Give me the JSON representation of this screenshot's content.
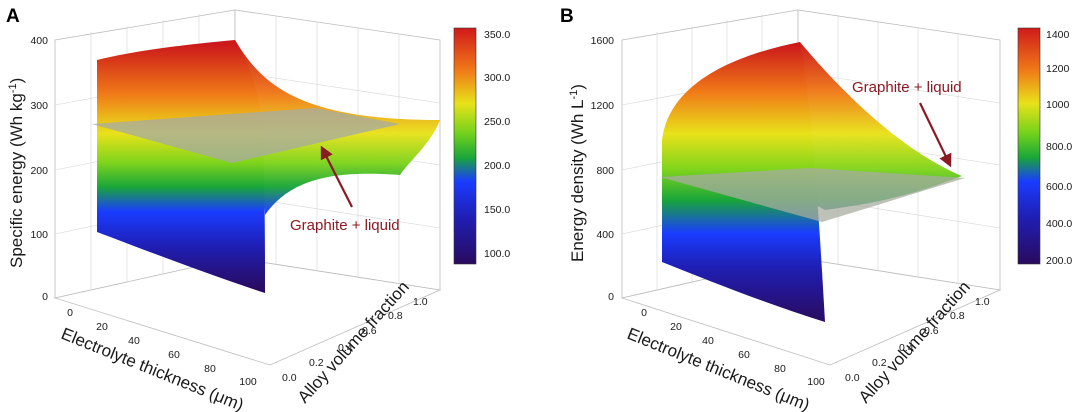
{
  "chart_data": [
    {
      "type": "surface3d",
      "panel_label": "A",
      "xlabel": "Electrolyte thickness (μm)",
      "ylabel": "Alloy volume fraction",
      "zlabel_main": "Specific energy (Wh kg",
      "zlabel_sup": "-1",
      "zlabel_tail": ")",
      "x_ticks": [
        "0",
        "20",
        "40",
        "60",
        "80",
        "100"
      ],
      "y_ticks": [
        "0.0",
        "0.2",
        "0.4",
        "0.6",
        "0.8",
        "1.0"
      ],
      "z_ticks": [
        "0",
        "100",
        "200",
        "300",
        "400"
      ],
      "xlim": [
        0,
        100
      ],
      "ylim": [
        0,
        1
      ],
      "zlim": [
        0,
        400
      ],
      "colorbar_ticks": [
        "350.0",
        "300.0",
        "250.0",
        "200.0",
        "150.0",
        "100.0"
      ],
      "colorbar_range": [
        90,
        360
      ],
      "surface_corners": {
        "x0_y0": 85,
        "x100_y0": 60,
        "x0_y1": 385,
        "x100_y1": 240
      },
      "reference_plane": {
        "name": "Graphite + liquid",
        "z": 255
      },
      "annotation": "Graphite + liquid"
    },
    {
      "type": "surface3d",
      "panel_label": "B",
      "xlabel": "Electrolyte thickness (μm)",
      "ylabel": "Alloy volume fraction",
      "zlabel_main": "Energy density (Wh L",
      "zlabel_sup": "-1",
      "zlabel_tail": ")",
      "x_ticks": [
        "0",
        "20",
        "40",
        "60",
        "80",
        "100"
      ],
      "y_ticks": [
        "0.0",
        "0.2",
        "0.4",
        "0.6",
        "0.8",
        "1.0"
      ],
      "z_ticks": [
        "0",
        "400",
        "800",
        "1200",
        "1600"
      ],
      "xlim": [
        0,
        100
      ],
      "ylim": [
        0,
        1
      ],
      "zlim": [
        0,
        1600
      ],
      "colorbar_ticks": [
        "1400",
        "1200",
        "1000",
        "800.0",
        "600.0",
        "400.0",
        "200.0"
      ],
      "colorbar_range": [
        150,
        1450
      ],
      "surface_corners": {
        "x0_y0": 220,
        "x100_y0": 140,
        "x0_y1": 1550,
        "x100_y1": 720
      },
      "reference_plane": {
        "name": "Graphite + liquid",
        "z": 760
      },
      "annotation": "Graphite + liquid"
    }
  ]
}
